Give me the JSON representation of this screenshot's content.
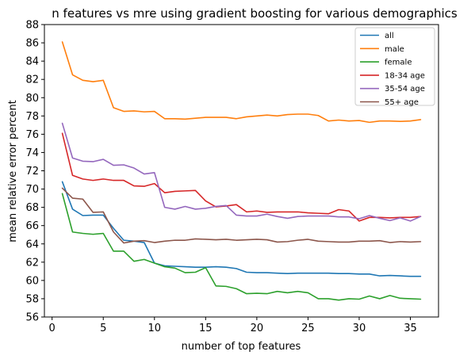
{
  "chart_data": {
    "type": "line",
    "title": "n features vs mre using gradient boosting for various demographics",
    "xlabel": "number of top features",
    "ylabel": "mean relative error percent",
    "xlim": [
      -0.75,
      37.75
    ],
    "ylim": [
      56,
      88
    ],
    "xticks": [
      0,
      5,
      10,
      15,
      20,
      25,
      30,
      35
    ],
    "yticks": [
      56,
      58,
      60,
      62,
      64,
      66,
      68,
      70,
      72,
      74,
      76,
      78,
      80,
      82,
      84,
      86,
      88
    ],
    "grid": false,
    "legend_position": "top-right",
    "x": [
      1,
      2,
      3,
      4,
      5,
      6,
      7,
      8,
      9,
      10,
      11,
      12,
      13,
      14,
      15,
      16,
      17,
      18,
      19,
      20,
      21,
      22,
      23,
      24,
      25,
      26,
      27,
      28,
      29,
      30,
      31,
      32,
      33,
      34,
      35,
      36
    ],
    "series": [
      {
        "name": "all",
        "color": "#1f77b4",
        "values": [
          70.8,
          67.8,
          67.1,
          67.15,
          67.15,
          65.7,
          64.4,
          64.3,
          64.15,
          61.9,
          61.6,
          61.55,
          61.5,
          61.45,
          61.45,
          61.5,
          61.45,
          61.3,
          60.9,
          60.85,
          60.85,
          60.8,
          60.75,
          60.8,
          60.8,
          60.8,
          60.8,
          60.75,
          60.75,
          60.7,
          60.7,
          60.5,
          60.55,
          60.5,
          60.45,
          60.45
        ]
      },
      {
        "name": "male",
        "color": "#ff7f0e",
        "values": [
          86.1,
          82.5,
          81.9,
          81.75,
          81.9,
          78.9,
          78.5,
          78.55,
          78.45,
          78.5,
          77.7,
          77.7,
          77.65,
          77.75,
          77.85,
          77.85,
          77.85,
          77.7,
          77.9,
          78.0,
          78.1,
          78.0,
          78.15,
          78.2,
          78.2,
          78.05,
          77.45,
          77.55,
          77.45,
          77.5,
          77.3,
          77.45,
          77.45,
          77.4,
          77.45,
          77.6
        ]
      },
      {
        "name": "female",
        "color": "#2ca02c",
        "values": [
          69.5,
          65.3,
          65.15,
          65.05,
          65.15,
          63.2,
          63.2,
          62.1,
          62.3,
          61.9,
          61.5,
          61.35,
          60.85,
          60.9,
          61.4,
          59.4,
          59.35,
          59.1,
          58.55,
          58.6,
          58.55,
          58.8,
          58.65,
          58.8,
          58.65,
          58.0,
          58.0,
          57.85,
          58.0,
          57.95,
          58.3,
          58.0,
          58.35,
          58.05,
          58.0,
          57.95
        ]
      },
      {
        "name": "18-34 age",
        "color": "#d62728",
        "values": [
          76.1,
          71.5,
          71.1,
          70.95,
          71.1,
          70.95,
          70.95,
          70.35,
          70.3,
          70.6,
          69.6,
          69.75,
          69.8,
          69.85,
          68.7,
          68.05,
          68.15,
          68.3,
          67.5,
          67.6,
          67.45,
          67.5,
          67.5,
          67.5,
          67.4,
          67.35,
          67.3,
          67.75,
          67.6,
          66.5,
          66.9,
          66.9,
          66.85,
          66.9,
          66.9,
          67.0
        ]
      },
      {
        "name": "35-54 age",
        "color": "#9467bd",
        "values": [
          77.2,
          73.4,
          73.05,
          73.0,
          73.25,
          72.6,
          72.65,
          72.3,
          71.65,
          71.8,
          68.0,
          67.8,
          68.1,
          67.8,
          67.9,
          68.1,
          68.2,
          67.15,
          67.05,
          67.05,
          67.25,
          67.0,
          66.8,
          67.0,
          67.05,
          67.05,
          67.05,
          66.95,
          66.95,
          66.75,
          67.1,
          66.8,
          66.55,
          66.85,
          66.5,
          67.0
        ]
      },
      {
        "name": "55+ age",
        "color": "#8c564b",
        "values": [
          70.1,
          69.0,
          68.9,
          67.45,
          67.5,
          65.3,
          64.1,
          64.3,
          64.35,
          64.15,
          64.3,
          64.4,
          64.4,
          64.55,
          64.5,
          64.45,
          64.5,
          64.4,
          64.45,
          64.5,
          64.45,
          64.2,
          64.25,
          64.4,
          64.5,
          64.3,
          64.25,
          64.2,
          64.2,
          64.3,
          64.3,
          64.35,
          64.15,
          64.25,
          64.2,
          64.25
        ]
      }
    ]
  }
}
